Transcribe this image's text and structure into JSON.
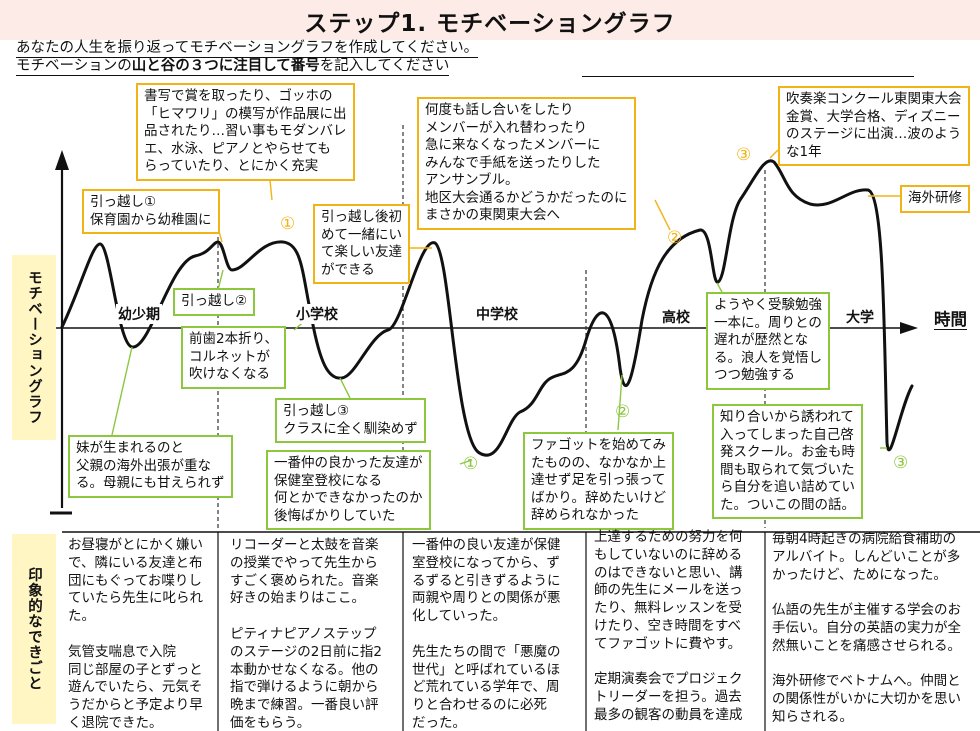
{
  "title": "ステップ1. モチベーショングラフ",
  "instructions": {
    "line1": "あなたの人生を振り返ってモチベーショングラフを作成してください。",
    "line2_pre": "モチベーションの",
    "line2_bold": "山と谷の３つに注目して番号",
    "line2_post": "を記入してください"
  },
  "axis": {
    "y_label": "モチベーショングラフ",
    "x_label": "時間"
  },
  "periods": [
    "幼少期",
    "小学校",
    "中学校",
    "高校",
    "大学"
  ],
  "highlight_label": "印象的なできごと",
  "colors": {
    "peak": "#f2b316",
    "valley": "#8dc63f",
    "curve": "#111111",
    "title_bg": "#fcebe6",
    "label_bg": "#fff6c4"
  },
  "events": [
    {
      "kind": "peak",
      "marker": "",
      "text": "引っ越し①\n保育園から幼稚園に"
    },
    {
      "kind": "valley",
      "marker": "",
      "text": "引っ越し②"
    },
    {
      "kind": "valley",
      "marker": "",
      "text": "前歯2本折り、\nコルネットが\n吹けなくなる"
    },
    {
      "kind": "valley",
      "marker": "",
      "text": "妹が生まれるのと\n父親の海外出張が重な\nる。母親にも甘えられず"
    },
    {
      "kind": "peak",
      "marker": "①",
      "text": "書写で賞を取ったり、ゴッホの\n「ヒマワリ」の模写が作品展に出\n品されたり…習い事もモダンバレ\nエ、水泳、ピアノとやらせても\nらっていたり、とにかく充実"
    },
    {
      "kind": "peak",
      "marker": "",
      "text": "引っ越し後初\nめて一緒にい\nて楽しい友達\nができる"
    },
    {
      "kind": "valley",
      "marker": "",
      "text": "引っ越し③\nクラスに全く馴染めず"
    },
    {
      "kind": "valley",
      "marker": "①",
      "text": "一番仲の良かった友達が\n保健室登校になる\n何とかできなかったのか\n後悔ばかりしていた"
    },
    {
      "kind": "peak",
      "marker": "②",
      "text": "何度も話し合いをしたり\nメンバーが入れ替わったり\n急に来なくなったメンバーに\nみんなで手紙を送ったりした\nアンサンブル。\n地区大会通るかどうかだったのに\nまさかの東関東大会へ"
    },
    {
      "kind": "valley",
      "marker": "②",
      "text": "ファゴットを始めてみ\nたものの、なかなか上\n達せず足を引っ張って\nばかり。辞めたいけど\n辞められなかった"
    },
    {
      "kind": "valley",
      "marker": "",
      "text": "ようやく受験勉強\n一本に。周りとの\n遅れが歴然とな\nる。浪人を覚悟し\nつつ勉強する"
    },
    {
      "kind": "peak",
      "marker": "③",
      "text": "吹奏楽コンクール東関東大会\n金賞、大学合格、ディズニー\nのステージに出演…波のよう\nな1年"
    },
    {
      "kind": "peak",
      "marker": "",
      "text": "海外研修"
    },
    {
      "kind": "valley",
      "marker": "③",
      "text": "知り合いから誘われて\n入ってしまった自己啓\n発スクール。お金も時\n間も取られて気づいた\nら自分を追い詰めてい\nた。ついこの間の話。"
    }
  ],
  "impressions": [
    "お昼寝がとにかく嫌い\nで、隣にいる友達と布\n団にもぐってお喋りし\nていたら先生に叱られ\nた。\n\n気管支喘息で入院\n同じ部屋の子とずっと\n遊んでいたら、元気そ\nうだからと予定より早\nく退院できた。",
    "リコーダーと太鼓を音楽\nの授業でやって先生から\nすごく褒められた。音楽\n好きの始まりはここ。\n\nピティナピアノステップ\nのステージの2日前に指2\n本動かせなくなる。他の\n指で弾けるように朝から\n晩まで練習。一番良い評\n価をもらう。",
    "一番仲の良い友達が保健\n室登校になってから、ず\nるずると引きずるように\n両親や周りとの関係が悪\n化していった。\n\n先生たちの間で「悪魔の\n世代」と呼ばれているほ\nど荒れている学年で、周\nりと合わせるのに必死\nだった。",
    "上達するための努力を何\nもしていないのに辞める\nのはできないと思い、講\n師の先生にメールを送っ\nたり、無料レッスンを受\nけたり、空き時間をすべ\nてファゴットに費やす。\n\n定期演奏会でプロジェク\nトリーダーを担う。過去\n最多の観客の動員を達成",
    "毎朝4時起きの病院給食補助の\nアルバイト。しんどいことが多\nかったけど、ためになった。\n\n仏語の先生が主催する学会のお\n手伝い。自分の英語の実力が全\n然無いことを痛感させられる。\n\n海外研修でベトナムへ。仲間と\nの関係性がいかに大切かを思い\n知らされる。"
  ]
}
